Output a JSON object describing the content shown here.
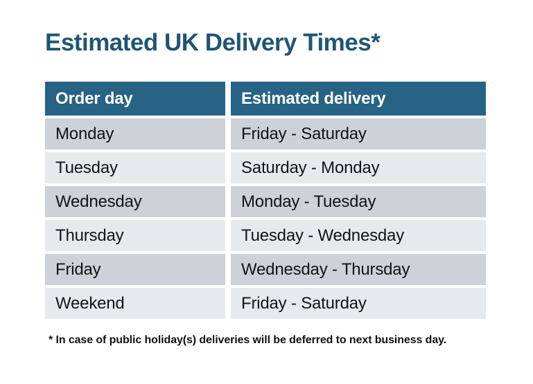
{
  "title": "Estimated UK Delivery Times*",
  "table": {
    "headers": {
      "order_day": "Order day",
      "estimated_delivery": "Estimated delivery"
    },
    "rows": [
      {
        "order_day": "Monday",
        "estimated_delivery": "Friday - Saturday"
      },
      {
        "order_day": "Tuesday",
        "estimated_delivery": "Saturday - Monday"
      },
      {
        "order_day": "Wednesday",
        "estimated_delivery": "Monday - Tuesday"
      },
      {
        "order_day": "Thursday",
        "estimated_delivery": "Tuesday - Wednesday"
      },
      {
        "order_day": "Friday",
        "estimated_delivery": "Wednesday - Thursday"
      },
      {
        "order_day": "Weekend",
        "estimated_delivery": "Friday - Saturday"
      }
    ]
  },
  "footnote": "* In case of public holiday(s) deliveries will be deferred to next business day.",
  "colors": {
    "title_text": "#1e5674",
    "header_background": "#266384",
    "header_text": "#ffffff",
    "row_alt_dark": "#cdd1d8",
    "row_alt_light": "#e7eaed",
    "body_text": "#131313",
    "page_background": "#ffffff"
  }
}
